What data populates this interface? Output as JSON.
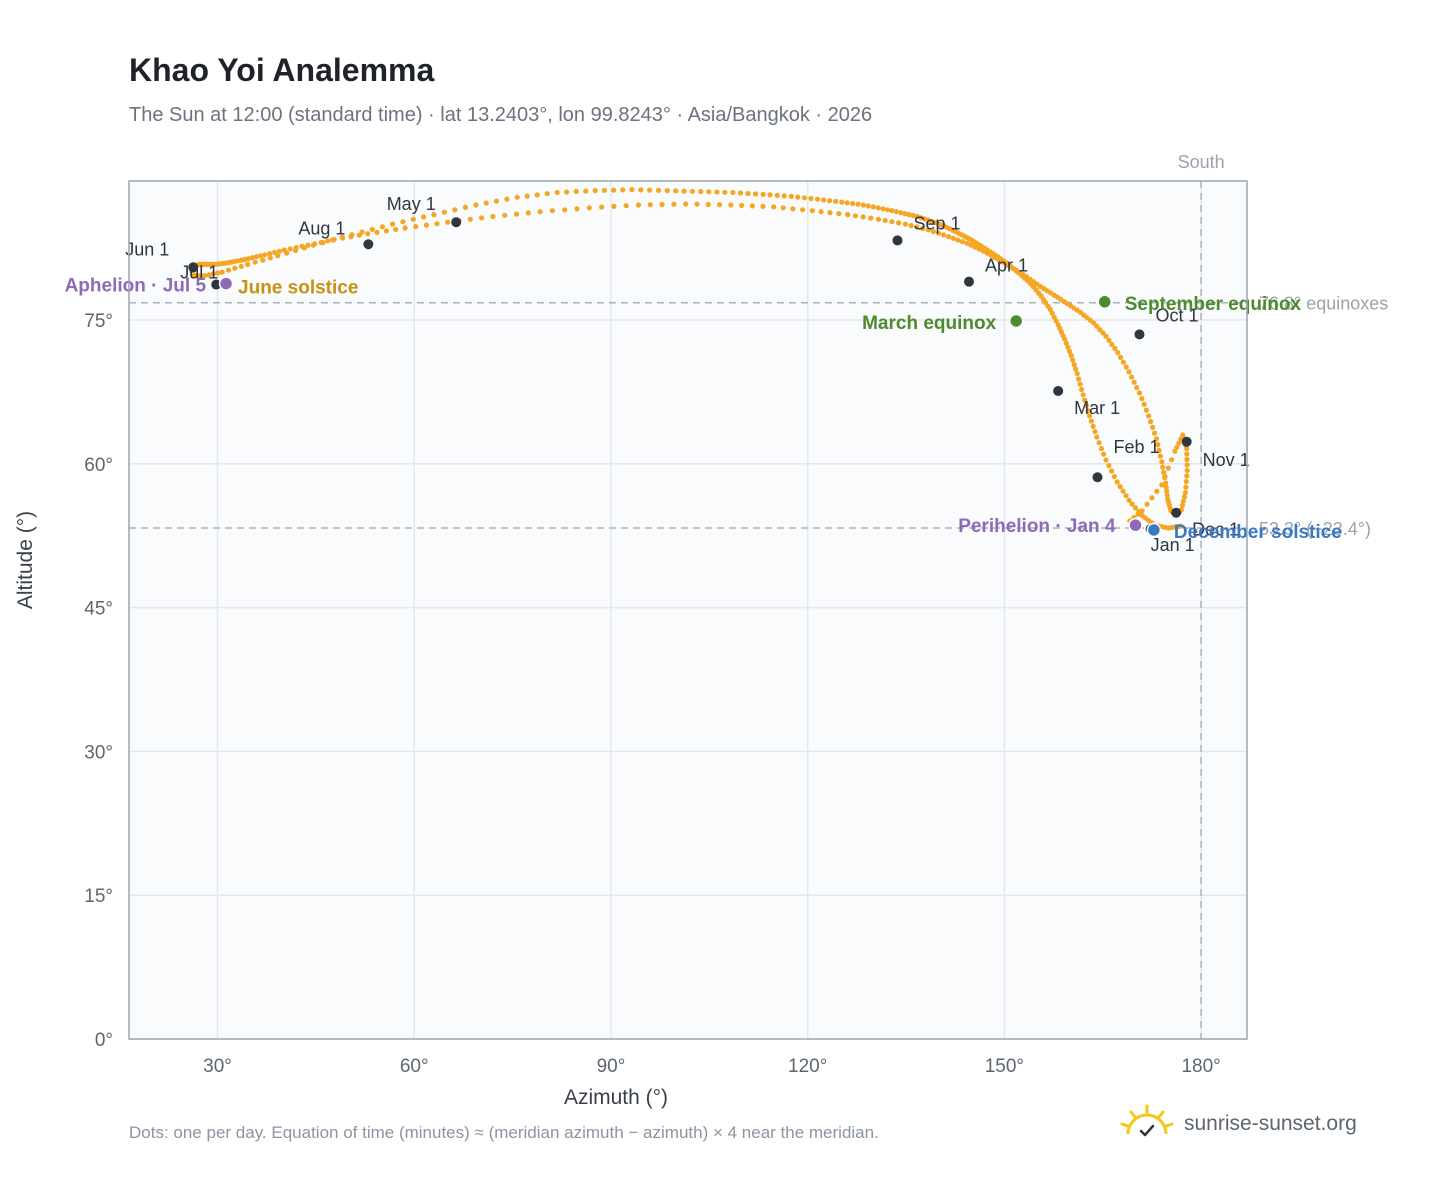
{
  "title": "Khao Yoi Analemma",
  "subtitle": "The Sun at 12:00 (standard time) · lat 13.2403°, lon 99.8243° · Asia/Bangkok · 2026",
  "footnote": "Dots: one per day. Equation of time (minutes) ≈ (meridian azimuth − azimuth) × 4 near the meridian.",
  "brand": "sunrise-sunset.org",
  "colors": {
    "curve": "#f5a623",
    "month_marker": "#2f3640",
    "equinox": "#4e8a2e",
    "aphelion": "#8e6bb5",
    "june_solstice": "#c99012",
    "december_solstice": "#3b78c2",
    "reference": "#a9b3bd",
    "grid": "#e3e8ee",
    "plot_bg": "#f9fbfd",
    "frame": "#9aa5b1"
  },
  "chart_data": {
    "type": "scatter",
    "xlabel": "Azimuth (°)",
    "ylabel": "Altitude (°)",
    "xlim": [
      16.5,
      187
    ],
    "ylim": [
      0,
      89.5
    ],
    "x_ticks": [
      30,
      60,
      90,
      120,
      150,
      180
    ],
    "x_tick_labels": [
      "30°",
      "60°",
      "90°",
      "120°",
      "150°",
      "180°"
    ],
    "y_ticks": [
      0,
      15,
      30,
      45,
      60,
      75
    ],
    "y_tick_labels": [
      "0°",
      "15°",
      "30°",
      "45°",
      "60°",
      "75°"
    ],
    "grid": true,
    "series": [
      {
        "x": [
          176.9,
          175.0,
          173.0,
          171.0,
          169.0,
          167.2,
          165.5,
          164.1,
          163.0,
          162.0,
          161.1,
          160.2,
          159.2,
          158.2,
          157.0,
          155.6,
          154.0,
          152.2,
          150.6,
          149.0,
          147.4,
          145.8,
          144.3,
          142.6,
          140.8,
          138.9,
          136.7,
          134.2,
          131.5,
          128.5,
          125.2,
          121.5,
          117.5,
          113.2,
          108.6,
          103.7,
          98.6,
          93.2,
          87.6,
          81.8,
          75.7,
          69.4,
          63.0,
          56.7,
          50.5,
          44.6,
          39.2,
          34.6,
          30.7,
          28.0,
          26.3,
          26.1,
          26.5,
          27.2,
          28.3,
          29.5,
          30.9,
          32.6,
          34.7,
          37.2,
          40.2,
          43.8,
          47.8,
          52.9,
          58.6,
          65.1,
          72.0,
          79.2,
          86.7,
          94.2,
          101.4,
          108.3,
          114.8,
          120.7,
          126.1,
          130.8,
          134.9,
          138.4,
          141.5,
          144.3,
          146.8,
          149.1,
          151.3,
          153.4,
          155.5,
          157.6,
          159.6,
          161.6,
          163.6,
          165.5,
          167.3,
          169.0,
          170.6,
          172.0,
          173.2,
          174.0,
          174.6,
          174.9,
          175.4,
          176.2,
          177.0,
          177.6,
          177.9,
          177.8,
          177.2,
          176.0,
          174.0,
          171.0,
          168.5
        ],
        "y": [
          53.5,
          53.3,
          53.6,
          54.6,
          56.2,
          58.1,
          60.4,
          62.8,
          65.0,
          67.2,
          69.4,
          71.3,
          73.0,
          74.5,
          76.1,
          77.5,
          78.8,
          79.9,
          80.8,
          81.6,
          82.3,
          83.0,
          83.6,
          84.2,
          84.8,
          85.3,
          85.8,
          86.2,
          86.6,
          87.0,
          87.3,
          87.6,
          87.9,
          88.1,
          88.3,
          88.4,
          88.5,
          88.6,
          88.5,
          88.3,
          87.8,
          87.0,
          86.0,
          85.0,
          83.9,
          82.8,
          81.7,
          80.8,
          80.0,
          79.6,
          79.6,
          80.1,
          80.6,
          80.8,
          80.8,
          80.8,
          80.9,
          81.1,
          81.4,
          81.8,
          82.3,
          82.8,
          83.4,
          84.0,
          84.6,
          85.2,
          85.8,
          86.3,
          86.7,
          87.0,
          87.1,
          87.0,
          86.8,
          86.4,
          86.0,
          85.5,
          85.0,
          84.4,
          83.7,
          83.0,
          82.2,
          81.3,
          80.4,
          79.5,
          78.5,
          77.6,
          76.7,
          75.8,
          74.7,
          73.3,
          71.6,
          69.6,
          67.4,
          65.0,
          62.6,
          60.2,
          58.0,
          56.3,
          55.1,
          54.7,
          55.2,
          57.0,
          59.3,
          61.6,
          63.0,
          61.3,
          57.8,
          55.1,
          53.7
        ]
      }
    ],
    "month_markers": [
      {
        "label": "Jan 1",
        "x": 172.3,
        "y": 53.2
      },
      {
        "label": "Feb 1",
        "x": 164.2,
        "y": 58.6
      },
      {
        "label": "Mar 1",
        "x": 158.2,
        "y": 67.6
      },
      {
        "label": "Apr 1",
        "x": 144.6,
        "y": 79.0
      },
      {
        "label": "May 1",
        "x": 66.4,
        "y": 85.2
      },
      {
        "label": "Jun 1",
        "x": 26.3,
        "y": 80.5
      },
      {
        "label": "Jul 1",
        "x": 29.8,
        "y": 78.7
      },
      {
        "label": "Aug 1",
        "x": 53.0,
        "y": 82.9
      },
      {
        "label": "Sep 1",
        "x": 133.7,
        "y": 83.3
      },
      {
        "label": "Oct 1",
        "x": 170.6,
        "y": 73.5
      },
      {
        "label": "Nov 1",
        "x": 177.8,
        "y": 62.3
      },
      {
        "label": "Dec 1",
        "x": 176.2,
        "y": 54.9
      }
    ],
    "events": [
      {
        "label": "March equinox",
        "x": 151.8,
        "y": 74.9,
        "kind": "equinox"
      },
      {
        "label": "September equinox",
        "x": 165.3,
        "y": 76.9,
        "kind": "equinox"
      },
      {
        "label": "Aphelion · Jul 5",
        "x": 31.3,
        "y": 78.8,
        "kind": "aphelion"
      },
      {
        "label": "June solstice",
        "x": 31.3,
        "y": 78.8,
        "kind": "june_solstice"
      },
      {
        "label": "Perihelion · Jan 4",
        "x": 170.0,
        "y": 53.6,
        "kind": "aphelion"
      },
      {
        "label": "December solstice",
        "x": 172.8,
        "y": 53.1,
        "kind": "december_solstice"
      }
    ],
    "reference_lines": [
      {
        "axis": "y",
        "value": 76.8,
        "label": "76.8° equinoxes"
      },
      {
        "axis": "y",
        "value": 53.3,
        "label": "53.3° (−23.4°)"
      },
      {
        "axis": "x",
        "value": 180,
        "label": "South"
      }
    ]
  }
}
